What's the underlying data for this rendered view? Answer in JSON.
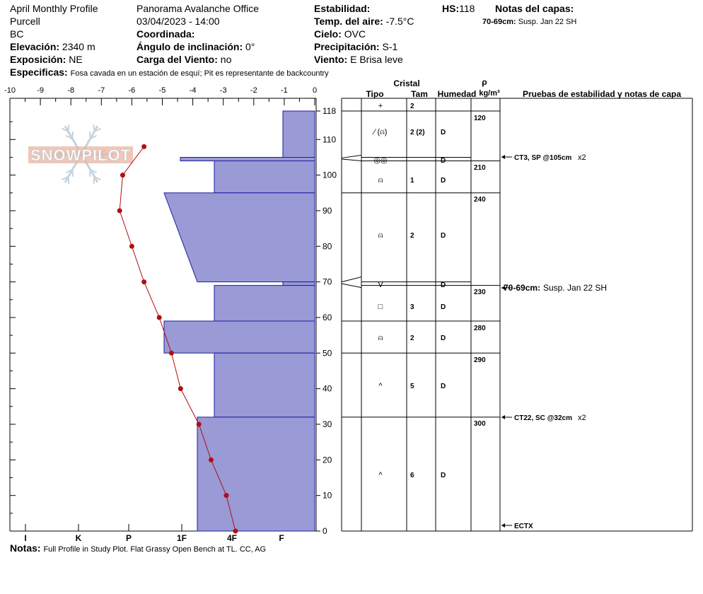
{
  "header": {
    "profile_name": "April Monthly Profile",
    "range": "Purcell",
    "state": "BC",
    "elevation_label": "Elevación:",
    "elevation_value": "2340 m",
    "aspect_label": "Exposición:",
    "aspect_value": "NE",
    "specifics_label": "Especificas:",
    "specifics_value": "Fosa cavada en un estación de esquí; Pit es representante de backcountry",
    "organization": "Panorama Avalanche Office",
    "datetime": "03/04/2023 - 14:00",
    "coord_label": "Coordinada:",
    "slope_label": "Ángulo de inclinación:",
    "slope_value": "0°",
    "wind_load_label": "Carga del Viento:",
    "wind_load_value": "no",
    "stability_label": "Estabilidad:",
    "air_temp_label": "Temp. del aire:",
    "air_temp_value": "-7.5°C",
    "sky_label": "Cielo:",
    "sky_value": "OVC",
    "precip_label": "Precipitación:",
    "precip_value": "S-1",
    "wind_label": "Viento:",
    "wind_value": "E  Brisa leve",
    "hs_label": "HS:",
    "hs_value": "118",
    "layer_notes_label": "Notas del capas:",
    "layer_notes_depth": "70-69cm:",
    "layer_notes_value": "Susp. Jan 22 SH"
  },
  "temp_axis": [
    "-10",
    "-9",
    "-8",
    "-7",
    "-6",
    "-5",
    "-4",
    "-3",
    "-2",
    "-1",
    "0"
  ],
  "hardness_axis": [
    "I",
    "K",
    "P",
    "1F",
    "4F",
    "F"
  ],
  "depth_ticks": [
    "118",
    "110",
    "100",
    "90",
    "80",
    "70",
    "60",
    "50",
    "40",
    "30",
    "20",
    "10",
    "0"
  ],
  "columns": {
    "crystal": "Cristal",
    "type": "Tipo",
    "size": "Tam",
    "moisture": "Humedad",
    "rho": "ρ",
    "density_unit": "kg/m³",
    "tests": "Pruebas de estabilidad y notas de capa"
  },
  "watermark": "SNOWPILOT",
  "notes_label": "Notas:",
  "notes_value": "Full Profile in Study Plot. Flat Grassy Open Bench at TL. CC, AG",
  "chart_data": {
    "type": "line",
    "x_label": "",
    "xlim": [
      -10,
      0
    ],
    "ylim": [
      0,
      118
    ],
    "temperature_profile": {
      "depth": [
        108,
        100,
        90,
        80,
        70,
        60,
        50,
        40,
        30,
        20,
        10,
        0
      ],
      "temp": [
        -5.6,
        -6.3,
        -6.4,
        -6.0,
        -5.6,
        -5.1,
        -4.7,
        -4.4,
        -3.8,
        -3.4,
        -2.9,
        -2.6
      ]
    },
    "hardness_bars": [
      {
        "top": 118,
        "bottom": 105,
        "hardness": "F+"
      },
      {
        "top": 105,
        "bottom": 104,
        "hardness": "1F-"
      },
      {
        "top": 104,
        "bottom": 95,
        "hardness": "4F"
      },
      {
        "top": 95,
        "bottom": 70,
        "hardness": "1F+ to 4F-"
      },
      {
        "top": 70,
        "bottom": 69,
        "hardness": "F+"
      },
      {
        "top": 69,
        "bottom": 59,
        "hardness": "4F"
      },
      {
        "top": 59,
        "bottom": 50,
        "hardness": "1F+"
      },
      {
        "top": 50,
        "bottom": 32,
        "hardness": "4F"
      },
      {
        "top": 32,
        "bottom": 0,
        "hardness": "4F-"
      }
    ],
    "layers": [
      {
        "top": 118,
        "bottom": 105,
        "type": "+",
        "size": "2",
        "moisture": "",
        "density": "120"
      },
      {
        "top": 118,
        "bottom": 105,
        "type": "∕ (⍝)",
        "size": "2 (2)",
        "moisture": "D",
        "density": ""
      },
      {
        "top": 105,
        "bottom": 104,
        "type": "◎◎",
        "size": "",
        "moisture": "D",
        "density": ""
      },
      {
        "top": 104,
        "bottom": 95,
        "type": "⍝",
        "size": "1",
        "moisture": "D",
        "density": "210"
      },
      {
        "top": 95,
        "bottom": 70,
        "type": "⍝",
        "size": "2",
        "moisture": "D",
        "density": "240"
      },
      {
        "top": 70,
        "bottom": 69,
        "type": "V",
        "size": "",
        "moisture": "D",
        "density": ""
      },
      {
        "top": 69,
        "bottom": 59,
        "type": "□",
        "size": "3",
        "moisture": "D",
        "density": "230"
      },
      {
        "top": 59,
        "bottom": 50,
        "type": "⍝",
        "size": "2",
        "moisture": "D",
        "density": "280"
      },
      {
        "top": 50,
        "bottom": 32,
        "type": "^",
        "size": "5",
        "moisture": "D",
        "density": "290"
      },
      {
        "top": 32,
        "bottom": 0,
        "type": "^",
        "size": "6",
        "moisture": "D",
        "density": "300"
      }
    ],
    "tests": [
      {
        "depth": 105,
        "label": "CT3, SP @105cm",
        "mult": "x2"
      },
      {
        "depth": 70,
        "label_bold": "70-69cm:",
        "label": "Susp. Jan 22 SH",
        "mult": ""
      },
      {
        "depth": 32,
        "label": "CT22, SC @32cm",
        "mult": "x2"
      },
      {
        "depth": 0,
        "label": "ECTX",
        "mult": ""
      }
    ]
  }
}
